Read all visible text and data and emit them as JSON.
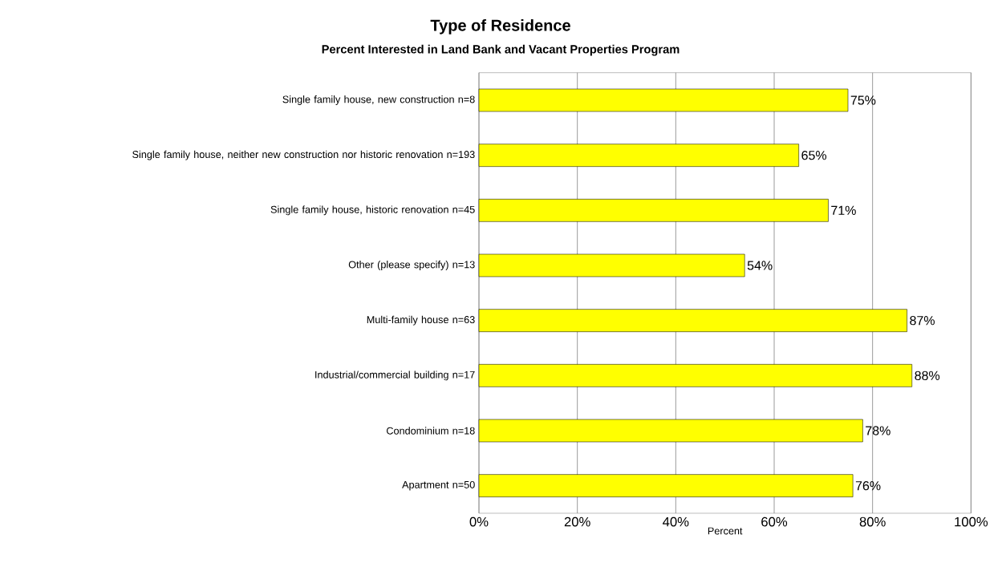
{
  "chart_data": {
    "type": "bar",
    "orientation": "horizontal",
    "title": "Type of Residence",
    "subtitle": "Percent Interested in Land Bank and Vacant Properties Program",
    "xlabel": "Percent",
    "categories": [
      "Single family house, new construction n=8",
      "Single family house, neither new construction nor historic renovation n=193",
      "Single family house, historic renovation n=45",
      "Other (please specify) n=13",
      "Multi-family house n=63",
      "Industrial/commercial building n=17",
      "Condominium n=18",
      "Apartment n=50"
    ],
    "values": [
      75,
      65,
      71,
      54,
      87,
      88,
      78,
      76
    ],
    "value_labels": [
      "75%",
      "65%",
      "71%",
      "54%",
      "87%",
      "88%",
      "78%",
      "76%"
    ],
    "color": "#ffff00",
    "xlim": [
      0,
      100
    ],
    "xticks": [
      {
        "value": 0,
        "label": "0%"
      },
      {
        "value": 20,
        "label": "20%"
      },
      {
        "value": 40,
        "label": "40%"
      },
      {
        "value": 60,
        "label": "60%"
      },
      {
        "value": 80,
        "label": "80%"
      },
      {
        "value": 100,
        "label": "100%"
      }
    ],
    "grid": "x"
  }
}
